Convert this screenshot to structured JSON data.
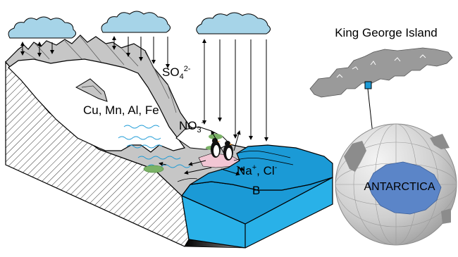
{
  "labels": {
    "sulfate": "SO",
    "sulfate_sub": "4",
    "sulfate_sup": "2-",
    "metals": "Cu, Mn,  Al, Fe",
    "nitrate": "NO",
    "nitrate_sub": "3",
    "nitrate_sup": "-",
    "sodium": "Na",
    "sodium_sup": "+",
    "chloride": ", Cl",
    "chloride_sup": "-",
    "boron": "B"
  },
  "map": {
    "island_title": "King George Island",
    "continent_label": "ANTARCTICA"
  },
  "colors": {
    "cloud": "#a6d4e8",
    "rock": "#c6c6c6",
    "snow": "#ffffff",
    "sea_top": "#1b9ad6",
    "sea_side": "#29b1e8",
    "moss": "#7bb267",
    "antarctica": "#5b85c8",
    "globe": "#cdcdcd"
  }
}
